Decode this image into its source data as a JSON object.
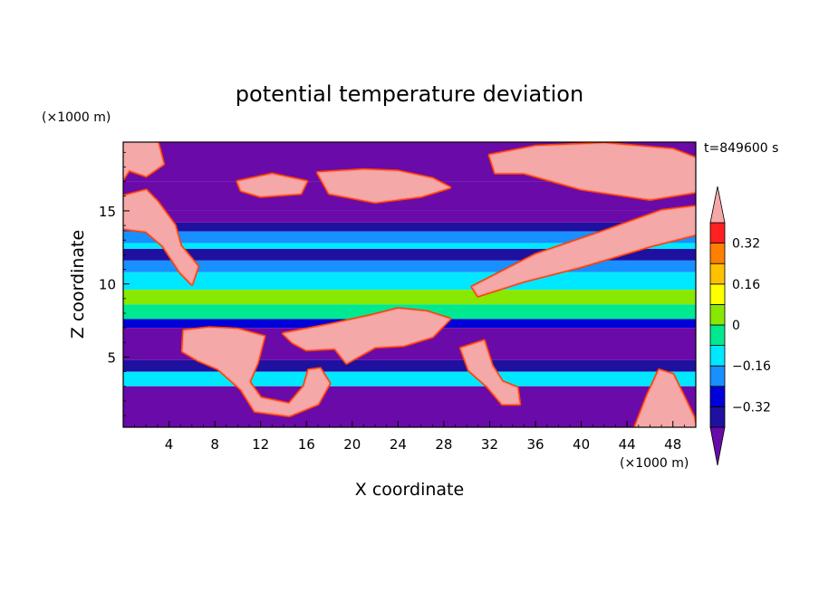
{
  "chart_data": {
    "type": "heatmap",
    "title": "potential temperature deviation",
    "xlabel": "X coordinate",
    "ylabel": "Z coordinate",
    "x_unit": "(×1000 m)",
    "y_unit": "(×1000 m)",
    "time_label": "t=849600 s",
    "xlim": [
      0,
      50
    ],
    "ylim": [
      0.2,
      19.7
    ],
    "x_ticks": [
      4,
      8,
      12,
      16,
      20,
      24,
      28,
      32,
      36,
      40,
      44,
      48
    ],
    "y_ticks": [
      5,
      10,
      15
    ],
    "colorbar": {
      "levels": [
        -0.48,
        -0.4,
        -0.32,
        -0.24,
        -0.16,
        -0.08,
        0,
        0.08,
        0.16,
        0.24,
        0.32,
        0.4
      ],
      "tick_labels": [
        "−0.32",
        "−0.16",
        "0",
        "0.16",
        "0.32"
      ],
      "tick_values": [
        -0.32,
        -0.16,
        0,
        0.16,
        0.32
      ],
      "colors": [
        "#6a0aa8",
        "#2010a0",
        "#0000d8",
        "#1890ff",
        "#00e8ff",
        "#00e890",
        "#88e800",
        "#ffff00",
        "#ffc000",
        "#ff8000",
        "#ff2020",
        "#f4a8a8"
      ]
    },
    "bands": [
      {
        "z": [
          17.0,
          19.7
        ],
        "value": -0.5
      },
      {
        "z": [
          15.0,
          17.0
        ],
        "value": -0.5
      },
      {
        "z": [
          14.2,
          15.0
        ],
        "value": -0.45
      },
      {
        "z": [
          13.6,
          14.2
        ],
        "value": -0.35
      },
      {
        "z": [
          12.8,
          13.6
        ],
        "value": -0.2
      },
      {
        "z": [
          12.4,
          12.8
        ],
        "value": -0.12
      },
      {
        "z": [
          11.6,
          12.4
        ],
        "value": -0.4
      },
      {
        "z": [
          10.8,
          11.6
        ],
        "value": -0.2
      },
      {
        "z": [
          9.6,
          10.8
        ],
        "value": -0.12
      },
      {
        "z": [
          8.6,
          9.6
        ],
        "value": 0.02
      },
      {
        "z": [
          7.6,
          8.6
        ],
        "value": -0.05
      },
      {
        "z": [
          7.0,
          7.6
        ],
        "value": -0.3
      },
      {
        "z": [
          4.8,
          7.0
        ],
        "value": -0.5
      },
      {
        "z": [
          4.0,
          4.8
        ],
        "value": -0.35
      },
      {
        "z": [
          3.0,
          4.0
        ],
        "value": -0.15
      },
      {
        "z": [
          0.2,
          3.0
        ],
        "value": -0.5
      }
    ],
    "patches": [
      {
        "name": "upper-left",
        "value": 0.45,
        "points": [
          [
            0,
            19.7
          ],
          [
            3,
            19.7
          ],
          [
            3.5,
            18.2
          ],
          [
            2,
            17.4
          ],
          [
            0.5,
            17.8
          ],
          [
            0,
            17.2
          ]
        ]
      },
      {
        "name": "upper-right",
        "value": 0.45,
        "points": [
          [
            32,
            18.8
          ],
          [
            36,
            19.4
          ],
          [
            42,
            19.6
          ],
          [
            48,
            19.2
          ],
          [
            50,
            18.6
          ],
          [
            50,
            16.3
          ],
          [
            46,
            15.8
          ],
          [
            40,
            16.5
          ],
          [
            35,
            17.6
          ],
          [
            32.5,
            17.6
          ]
        ]
      },
      {
        "name": "upper-mid",
        "value": 0.45,
        "points": [
          [
            17,
            17.6
          ],
          [
            21,
            17.8
          ],
          [
            24,
            17.7
          ],
          [
            27,
            17.2
          ],
          [
            28.5,
            16.6
          ],
          [
            26,
            16.0
          ],
          [
            22,
            15.6
          ],
          [
            18,
            16.2
          ]
        ]
      },
      {
        "name": "upper-islands",
        "value": 0.45,
        "points": [
          [
            10,
            17.0
          ],
          [
            13,
            17.5
          ],
          [
            16,
            17.0
          ],
          [
            15.5,
            16.2
          ],
          [
            12,
            16.0
          ],
          [
            10.3,
            16.4
          ]
        ]
      },
      {
        "name": "mid-left",
        "value": 0.45,
        "points": [
          [
            0,
            16.0
          ],
          [
            2,
            16.4
          ],
          [
            3,
            15.6
          ],
          [
            4.5,
            14.0
          ],
          [
            5,
            12.6
          ],
          [
            6.5,
            11.2
          ],
          [
            6,
            10.0
          ],
          [
            5,
            10.8
          ],
          [
            3.5,
            12.6
          ],
          [
            2,
            13.6
          ],
          [
            0,
            13.8
          ]
        ]
      },
      {
        "name": "mid-right-ridge",
        "value": 0.45,
        "points": [
          [
            30.5,
            9.8
          ],
          [
            36,
            12.0
          ],
          [
            42,
            13.6
          ],
          [
            47,
            15.0
          ],
          [
            50,
            15.3
          ],
          [
            50,
            13.4
          ],
          [
            46,
            12.6
          ],
          [
            40,
            11.2
          ],
          [
            35,
            10.2
          ],
          [
            31,
            9.2
          ]
        ]
      },
      {
        "name": "lower-center",
        "value": 0.45,
        "points": [
          [
            14,
            6.6
          ],
          [
            18,
            7.2
          ],
          [
            21.5,
            7.8
          ],
          [
            24,
            8.3
          ],
          [
            26.5,
            8.1
          ],
          [
            28.5,
            7.6
          ],
          [
            27,
            6.4
          ],
          [
            24.5,
            5.8
          ],
          [
            22,
            5.7
          ],
          [
            19.5,
            4.6
          ],
          [
            18.5,
            5.6
          ],
          [
            16,
            5.5
          ],
          [
            14.8,
            6.0
          ]
        ]
      },
      {
        "name": "lower-left-mass",
        "value": 0.45,
        "points": [
          [
            5.3,
            6.8
          ],
          [
            7.5,
            7.0
          ],
          [
            10,
            6.9
          ],
          [
            12.3,
            6.4
          ],
          [
            11.7,
            4.6
          ],
          [
            11,
            3.3
          ],
          [
            12,
            2.2
          ],
          [
            14.5,
            1.8
          ],
          [
            15.8,
            3.0
          ],
          [
            16.2,
            4.1
          ],
          [
            17.2,
            4.2
          ],
          [
            18,
            3.2
          ],
          [
            17,
            1.8
          ],
          [
            14.5,
            1.0
          ],
          [
            11.5,
            1.3
          ],
          [
            10.3,
            2.8
          ],
          [
            8.3,
            4.2
          ],
          [
            6.5,
            4.8
          ],
          [
            5.2,
            5.4
          ]
        ]
      },
      {
        "name": "lower-center-right",
        "value": 0.45,
        "points": [
          [
            29.5,
            5.6
          ],
          [
            31.5,
            6.1
          ],
          [
            32.2,
            4.4
          ],
          [
            33.1,
            3.3
          ],
          [
            34.4,
            2.9
          ],
          [
            34.6,
            1.8
          ],
          [
            33.1,
            1.8
          ],
          [
            31.8,
            3.0
          ],
          [
            30.2,
            4.1
          ]
        ]
      },
      {
        "name": "lower-right",
        "value": 0.45,
        "points": [
          [
            44.7,
            0.2
          ],
          [
            45.8,
            2.4
          ],
          [
            46.8,
            4.1
          ],
          [
            48,
            3.8
          ],
          [
            49,
            2.2
          ],
          [
            49.8,
            0.9
          ],
          [
            50,
            0.2
          ]
        ]
      }
    ]
  }
}
